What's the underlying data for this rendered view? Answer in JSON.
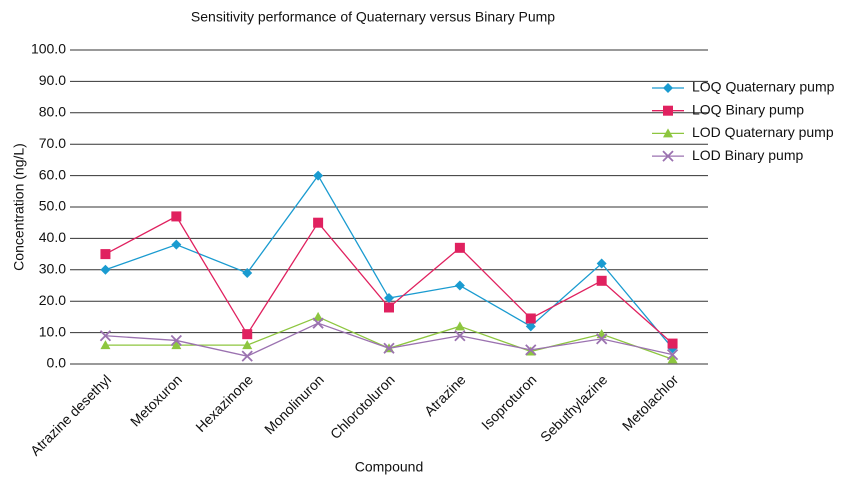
{
  "chart_data": {
    "type": "line",
    "title": "Sensitivity performance of Quaternary versus Binary Pump",
    "x_label": "Compound",
    "y_label": "Concentration (ng/L)",
    "categories": [
      "Atrazine desethyl",
      "Metoxuron",
      "Hexazinone",
      "Monolinuron",
      "Chlorotoluron",
      "Atrazine",
      "Isoproturon",
      "Sebuthylazine",
      "Metolachlor"
    ],
    "series": [
      {
        "name": "LOQ Quaternary pump",
        "color": "#1a9bd0",
        "marker": "diamond",
        "values": [
          30,
          38,
          29,
          60,
          21,
          25,
          12,
          32,
          5
        ]
      },
      {
        "name": "LOQ Binary pump",
        "color": "#e0215f",
        "marker": "square",
        "values": [
          35,
          47,
          9.5,
          45,
          18,
          37,
          14.5,
          26.5,
          6.5
        ]
      },
      {
        "name": "LOD Quaternary pump",
        "color": "#8dc63f",
        "marker": "triangle",
        "values": [
          6,
          6,
          6,
          15,
          5,
          12,
          4,
          9.5,
          1.5
        ]
      },
      {
        "name": "LOD Binary pump",
        "color": "#9b72b0",
        "marker": "x",
        "values": [
          9,
          7.5,
          2.5,
          13,
          5,
          9,
          4.5,
          8,
          3
        ]
      }
    ],
    "ylim": [
      0,
      100
    ],
    "yticks": [
      {
        "value": 0,
        "label": "0.0"
      },
      {
        "value": 10,
        "label": "10.0"
      },
      {
        "value": 20,
        "label": "20.0"
      },
      {
        "value": 30,
        "label": "30.0"
      },
      {
        "value": 40,
        "label": "40.0"
      },
      {
        "value": 50,
        "label": "50.0"
      },
      {
        "value": 60,
        "label": "60.0"
      },
      {
        "value": 70,
        "label": "70.0"
      },
      {
        "value": 80,
        "label": "80.0"
      },
      {
        "value": 90,
        "label": "90.0"
      },
      {
        "value": 100,
        "label": "100.0"
      }
    ],
    "grid": true,
    "legend": "right"
  }
}
